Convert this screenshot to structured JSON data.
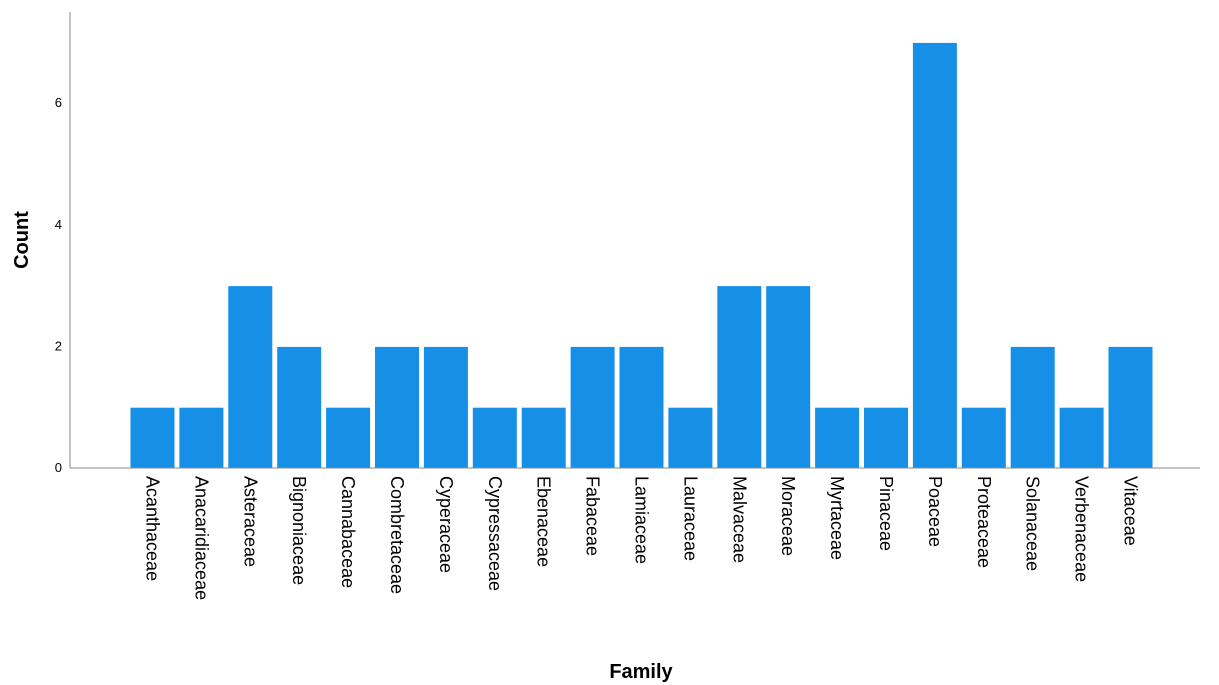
{
  "chart_data": {
    "type": "bar",
    "xlabel": "Family",
    "ylabel": "Count",
    "ylim": [
      0,
      7.5
    ],
    "yticks": [
      0,
      2,
      4,
      6
    ],
    "grid": false,
    "bar_color": "#1690e6",
    "categories": [
      "Acanthaceae",
      "Anacaridiaceae",
      "Asteraceae",
      "Bignoniaceae",
      "Cannabaceae",
      "Combretaceae",
      "Cyperaceae",
      "Cypressaceae",
      "Ebenaceae",
      "Fabaceae",
      "Lamiaceae",
      "Lauraceae",
      "Malvaceae",
      "Moraceae",
      "Myrtaceae",
      "Pinaceae",
      "Poaceae",
      "Proteaceae",
      "Solanaceae",
      "Verbenaceae",
      "Vitaceae"
    ],
    "values": [
      1,
      1,
      3,
      2,
      1,
      2,
      2,
      1,
      1,
      2,
      2,
      1,
      3,
      3,
      1,
      1,
      7,
      1,
      2,
      1,
      2
    ]
  }
}
